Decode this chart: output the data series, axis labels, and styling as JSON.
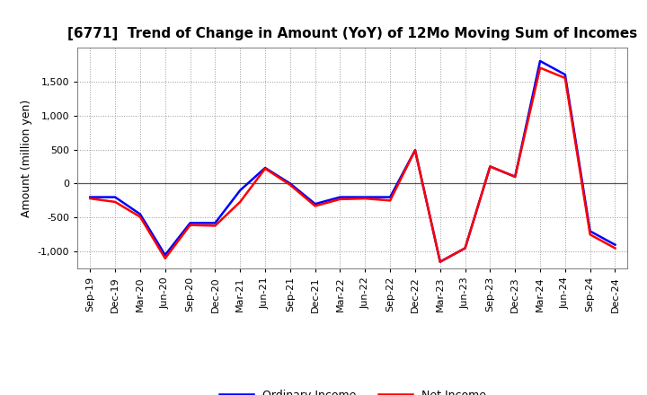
{
  "title": "[6771]  Trend of Change in Amount (YoY) of 12Mo Moving Sum of Incomes",
  "ylabel": "Amount (million yen)",
  "labels": [
    "Sep-19",
    "Dec-19",
    "Mar-20",
    "Jun-20",
    "Sep-20",
    "Dec-20",
    "Mar-21",
    "Jun-21",
    "Sep-21",
    "Dec-21",
    "Mar-22",
    "Jun-22",
    "Sep-22",
    "Dec-22",
    "Mar-23",
    "Jun-23",
    "Sep-23",
    "Dec-23",
    "Mar-24",
    "Jun-24",
    "Sep-24",
    "Dec-24"
  ],
  "ordinary_income": [
    -200,
    -200,
    -450,
    -1050,
    -580,
    -580,
    -100,
    230,
    0,
    -300,
    -200,
    -200,
    -200,
    490,
    -1150,
    -950,
    250,
    100,
    1800,
    1600,
    -700,
    -900
  ],
  "net_income": [
    -220,
    -270,
    -490,
    -1100,
    -610,
    -620,
    -270,
    220,
    -20,
    -330,
    -230,
    -220,
    -250,
    490,
    -1150,
    -950,
    250,
    100,
    1700,
    1550,
    -750,
    -950
  ],
  "ordinary_color": "#0000ff",
  "net_color": "#ff0000",
  "ylim": [
    -1250,
    2000
  ],
  "yticks": [
    -1000,
    -500,
    0,
    500,
    1000,
    1500
  ],
  "bg_color": "#ffffff",
  "grid_color": "#999999",
  "line_width": 1.8,
  "title_fontsize": 11,
  "axis_fontsize": 9,
  "tick_fontsize": 8
}
